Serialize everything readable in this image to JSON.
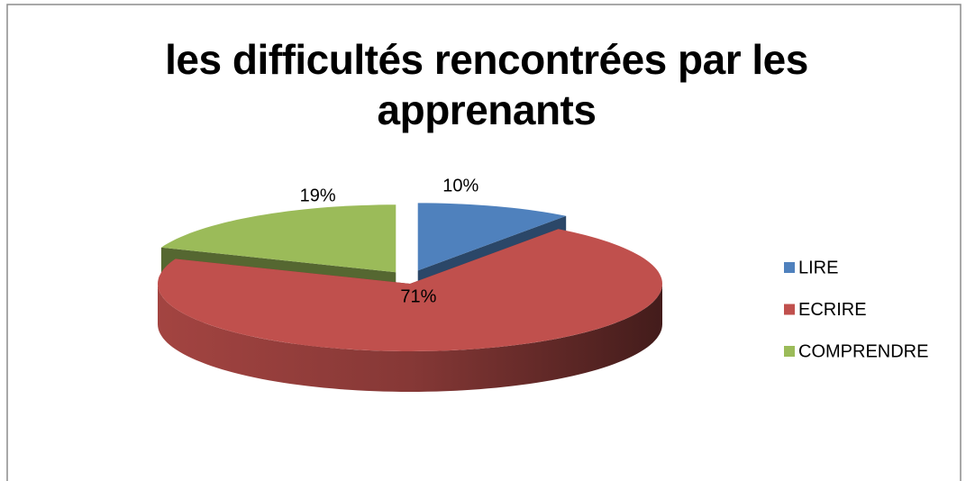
{
  "chart_data": {
    "type": "pie3d",
    "title": "les difficultés rencontrées par les apprenants",
    "categories": [
      "LIRE",
      "ECRIRE",
      "COMPRENDRE"
    ],
    "values": [
      10,
      71,
      19
    ],
    "value_labels": [
      "10%",
      "71%",
      "19%"
    ],
    "colors": [
      "#4f81bd",
      "#c0504d",
      "#9bbb59"
    ],
    "legend": "right"
  }
}
